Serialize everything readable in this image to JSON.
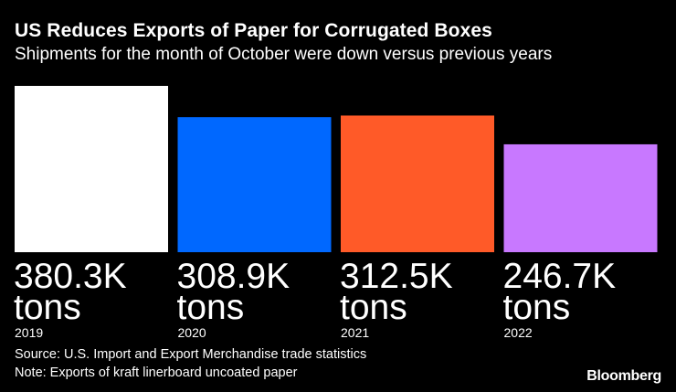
{
  "chart_data": {
    "type": "bar",
    "title": "US Reduces Exports of Paper for Corrugated Boxes",
    "subtitle": "Shipments for the month of October were down versus previous years",
    "categories": [
      "2019",
      "2020",
      "2021",
      "2022"
    ],
    "values": [
      380.3,
      308.9,
      312.5,
      246.7
    ],
    "value_labels": [
      "380.3K",
      "308.9K",
      "312.5K",
      "246.7K"
    ],
    "unit_label": "tons",
    "colors": [
      "#ffffff",
      "#0068ff",
      "#ff5a28",
      "#c878ff"
    ],
    "ylim": [
      0,
      380.3
    ],
    "grid": false,
    "legend": "none"
  },
  "source": "Source: U.S. Import and Export Merchandise trade statistics",
  "note": "Note: Exports of kraft linerboard uncoated paper",
  "brand": "Bloomberg"
}
